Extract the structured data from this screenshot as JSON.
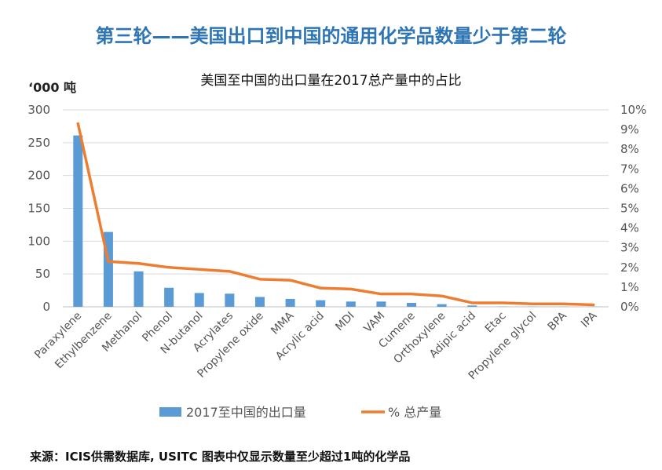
{
  "headline": "第三轮——美国出口到中国的通用化学品数量少于第二轮",
  "source_note": "来源：ICIS供需数据库, USITC  图表中仅显示数量至少超过1吨的化学品",
  "colors": {
    "bar": "#5b9bd5",
    "line": "#ed7d31",
    "headline": "#2e75b6",
    "grid": "#d9d9d9"
  },
  "chart_data": {
    "type": "bar",
    "title": "美国至中国的出口量在2017总产量中的占比",
    "ylabel": "‘000 吨",
    "ylim": [
      0,
      300
    ],
    "yticks": [
      "0",
      "50",
      "100",
      "150",
      "200",
      "250",
      "300"
    ],
    "y2lim": [
      0,
      10
    ],
    "y2ticks": [
      "0%",
      "1%",
      "2%",
      "3%",
      "4%",
      "5%",
      "6%",
      "7%",
      "8%",
      "9%",
      "10%"
    ],
    "categories": [
      "Paraxylene",
      "Ethylbenzene",
      "Methanol",
      "Phenol",
      "N-butanol",
      "Acrylates",
      "Propylene oxide",
      "MMA",
      "Acrylic acid",
      "MDI",
      "VAM",
      "Cumene",
      "Orthoxylene",
      "Adipic acid",
      "Etac",
      "Propylene glycol",
      "BPA",
      "IPA"
    ],
    "series": [
      {
        "name": "2017至中国的出口量",
        "type": "bar",
        "axis": "left",
        "values": [
          261,
          114,
          54,
          29,
          21,
          20,
          15,
          12,
          10,
          8,
          8,
          6,
          4,
          2,
          0.3,
          0.3,
          0.2,
          0.2
        ]
      },
      {
        "name": "% 总产量",
        "type": "line",
        "axis": "right",
        "values": [
          9.3,
          2.3,
          2.2,
          2.0,
          1.9,
          1.8,
          1.4,
          1.35,
          0.95,
          0.9,
          0.65,
          0.65,
          0.55,
          0.2,
          0.2,
          0.15,
          0.15,
          0.1
        ]
      }
    ],
    "legend": {
      "position": "bottom"
    }
  }
}
